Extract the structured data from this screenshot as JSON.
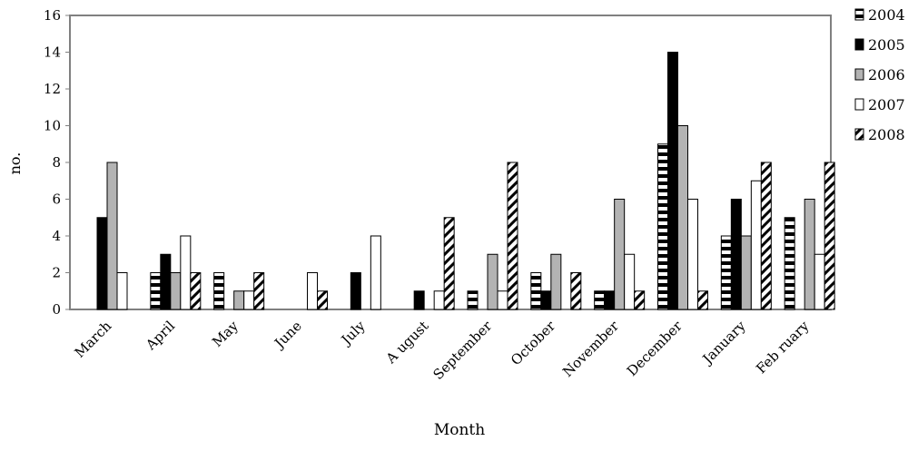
{
  "chart_data": {
    "type": "bar",
    "xlabel": "Month",
    "ylabel": "no.",
    "ylim": [
      0,
      16
    ],
    "yticks": [
      0,
      2,
      4,
      6,
      8,
      10,
      12,
      14,
      16
    ],
    "grid": false,
    "legend_position": "right",
    "categories": [
      "March",
      "April",
      "May",
      "June",
      "July",
      "A ugust",
      "September",
      "October",
      "November",
      "December",
      "January",
      "Feb ruary"
    ],
    "series": [
      {
        "name": "2004",
        "pattern": "horizontal-stripes",
        "color": "#000000",
        "values": [
          0,
          2,
          2,
          0,
          0,
          0,
          1,
          2,
          1,
          9,
          4,
          5
        ]
      },
      {
        "name": "2005",
        "pattern": "solid",
        "color": "#000000",
        "values": [
          5,
          3,
          0,
          0,
          2,
          1,
          0,
          1,
          1,
          14,
          6,
          0
        ]
      },
      {
        "name": "2006",
        "pattern": "solid",
        "color": "#b3b3b3",
        "values": [
          8,
          2,
          1,
          0,
          0,
          0,
          3,
          3,
          6,
          10,
          4,
          6
        ]
      },
      {
        "name": "2007",
        "pattern": "solid",
        "color": "#ffffff",
        "values": [
          2,
          4,
          1,
          2,
          4,
          1,
          1,
          0,
          3,
          6,
          7,
          3
        ]
      },
      {
        "name": "2008",
        "pattern": "zigzag",
        "color": "#000000",
        "values": [
          0,
          2,
          2,
          1,
          0,
          5,
          8,
          2,
          1,
          1,
          8,
          8
        ]
      }
    ]
  }
}
